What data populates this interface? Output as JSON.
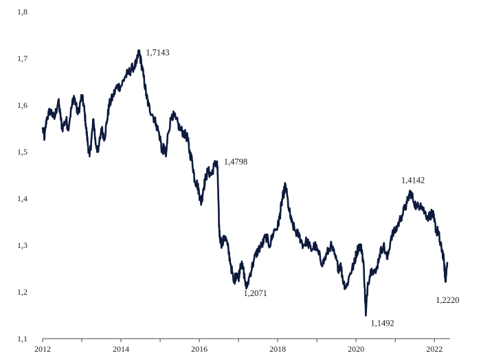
{
  "chart_data": {
    "type": "line",
    "title": "",
    "xlabel": "",
    "ylabel": "",
    "x_ticks": [
      "2012",
      "2014",
      "2016",
      "2018",
      "2020",
      "2022"
    ],
    "y_ticks": [
      "1,1",
      "1,2",
      "1,3",
      "1,4",
      "1,5",
      "1,6",
      "1,7",
      "1,8"
    ],
    "xlim": [
      2012.0,
      2022.4
    ],
    "ylim": [
      1.1,
      1.8
    ],
    "grid": false,
    "legend": "none",
    "line_color": "#0d1a3d",
    "series": [
      {
        "x": [
          2012.0,
          2012.05,
          2012.1,
          2012.2,
          2012.3,
          2012.4,
          2012.45,
          2012.5,
          2012.6,
          2012.65,
          2012.75,
          2012.8,
          2012.9,
          2013.0,
          2013.05,
          2013.1,
          2013.15,
          2013.2,
          2013.25,
          2013.3,
          2013.35,
          2013.42,
          2013.5,
          2013.58,
          2013.65,
          2013.7,
          2013.8,
          2013.9,
          2014.0,
          2014.1,
          2014.2,
          2014.3,
          2014.4,
          2014.46,
          2014.52,
          2014.58,
          2014.65,
          2014.7,
          2014.8,
          2014.9,
          2015.0,
          2015.05,
          2015.1,
          2015.15,
          2015.2,
          2015.3,
          2015.4,
          2015.5,
          2015.6,
          2015.7,
          2015.75,
          2015.82,
          2015.88,
          2015.95,
          2016.0,
          2016.05,
          2016.1,
          2016.15,
          2016.22,
          2016.3,
          2016.38,
          2016.45,
          2016.47,
          2016.5,
          2016.52,
          2016.58,
          2016.65,
          2016.72,
          2016.8,
          2016.88,
          2016.95,
          2017.0,
          2017.05,
          2017.12,
          2017.2,
          2017.3,
          2017.4,
          2017.5,
          2017.6,
          2017.7,
          2017.8,
          2017.9,
          2018.0,
          2018.05,
          2018.1,
          2018.15,
          2018.2,
          2018.28,
          2018.35,
          2018.45,
          2018.55,
          2018.65,
          2018.75,
          2018.85,
          2018.95,
          2019.05,
          2019.15,
          2019.25,
          2019.35,
          2019.45,
          2019.55,
          2019.6,
          2019.68,
          2019.75,
          2019.85,
          2019.95,
          2020.0,
          2020.08,
          2020.15,
          2020.2,
          2020.25,
          2020.3,
          2020.4,
          2020.5,
          2020.6,
          2020.7,
          2020.8,
          2020.9,
          2021.0,
          2021.1,
          2021.2,
          2021.3,
          2021.38,
          2021.45,
          2021.55,
          2021.65,
          2021.75,
          2021.85,
          2021.95,
          2022.0,
          2022.05,
          2022.1,
          2022.15,
          2022.2,
          2022.25,
          2022.28,
          2022.3,
          2022.33
        ],
        "y": [
          1.55,
          1.53,
          1.57,
          1.59,
          1.57,
          1.61,
          1.58,
          1.55,
          1.57,
          1.55,
          1.6,
          1.62,
          1.58,
          1.62,
          1.6,
          1.56,
          1.52,
          1.49,
          1.53,
          1.57,
          1.52,
          1.5,
          1.55,
          1.53,
          1.57,
          1.6,
          1.62,
          1.64,
          1.64,
          1.66,
          1.67,
          1.68,
          1.69,
          1.7143,
          1.69,
          1.66,
          1.62,
          1.6,
          1.58,
          1.56,
          1.53,
          1.5,
          1.51,
          1.49,
          1.54,
          1.58,
          1.57,
          1.55,
          1.54,
          1.53,
          1.5,
          1.48,
          1.44,
          1.43,
          1.41,
          1.39,
          1.42,
          1.44,
          1.46,
          1.45,
          1.47,
          1.4798,
          1.45,
          1.35,
          1.32,
          1.3,
          1.32,
          1.3,
          1.26,
          1.22,
          1.24,
          1.23,
          1.26,
          1.25,
          1.2071,
          1.24,
          1.27,
          1.29,
          1.3,
          1.32,
          1.3,
          1.33,
          1.34,
          1.36,
          1.39,
          1.41,
          1.43,
          1.38,
          1.35,
          1.33,
          1.32,
          1.3,
          1.31,
          1.29,
          1.3,
          1.28,
          1.26,
          1.28,
          1.3,
          1.28,
          1.25,
          1.26,
          1.22,
          1.21,
          1.24,
          1.26,
          1.28,
          1.3,
          1.29,
          1.25,
          1.1492,
          1.22,
          1.25,
          1.24,
          1.28,
          1.3,
          1.27,
          1.32,
          1.33,
          1.35,
          1.37,
          1.39,
          1.4142,
          1.4,
          1.38,
          1.39,
          1.37,
          1.36,
          1.37,
          1.35,
          1.33,
          1.33,
          1.3,
          1.29,
          1.26,
          1.222,
          1.24,
          1.26
        ]
      }
    ],
    "annotations": [
      {
        "text": "1,7143",
        "x": 2014.46,
        "y": 1.7143
      },
      {
        "text": "1,4798",
        "x": 2016.45,
        "y": 1.4798
      },
      {
        "text": "1,4142",
        "x": 2021.38,
        "y": 1.4142
      },
      {
        "text": "1,2071",
        "x": 2017.2,
        "y": 1.2071
      },
      {
        "text": "1,1492",
        "x": 2020.25,
        "y": 1.1492
      },
      {
        "text": "1,2220",
        "x": 2022.28,
        "y": 1.222
      }
    ]
  }
}
